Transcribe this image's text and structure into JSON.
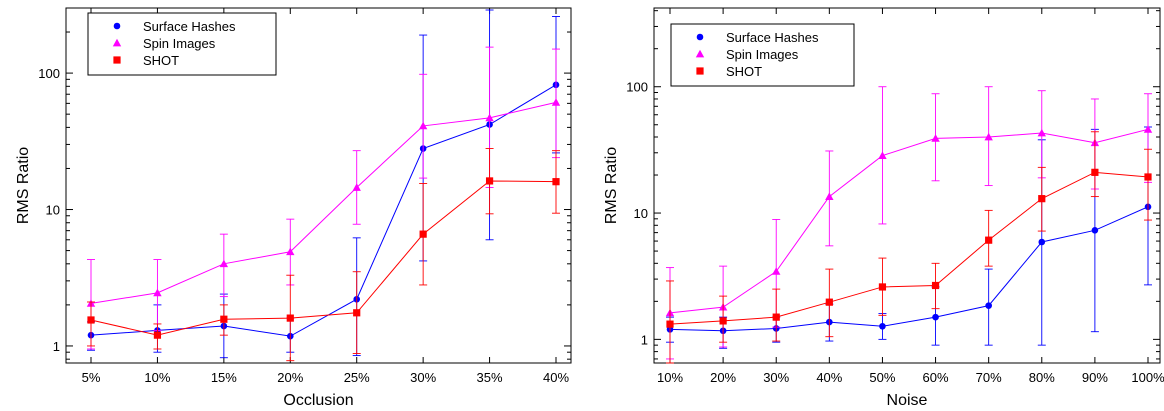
{
  "chart_data": [
    {
      "type": "line",
      "xlabel": "Occlusion",
      "ylabel": "RMS Ratio",
      "yscale": "log",
      "ylim": [
        0.75,
        300
      ],
      "yticks": [
        1,
        10,
        100
      ],
      "ytick_labels": [
        "1",
        "10",
        "100"
      ],
      "categories": [
        "5%",
        "10%",
        "15%",
        "20%",
        "25%",
        "30%",
        "35%",
        "40%"
      ],
      "legend_position": "top-left",
      "series": [
        {
          "name": "Surface Hashes",
          "color": "#0000ff",
          "marker": "circle",
          "values": [
            1.2,
            1.3,
            1.4,
            1.18,
            2.2,
            28,
            42,
            82
          ],
          "err_low": [
            0.93,
            0.9,
            0.82,
            0.9,
            0.85,
            4.2,
            6,
            26
          ],
          "err_high": [
            1.5,
            2.0,
            2.4,
            1.6,
            6.2,
            190,
            290,
            260
          ]
        },
        {
          "name": "Spin Images",
          "color": "#ff00ff",
          "marker": "triangle",
          "values": [
            2.05,
            2.45,
            4.0,
            4.9,
            14.5,
            41,
            47,
            61
          ],
          "err_low": [
            0.95,
            1.3,
            2.3,
            2.8,
            7.8,
            17,
            14.5,
            24
          ],
          "err_high": [
            4.3,
            4.3,
            6.6,
            8.5,
            27,
            98,
            155,
            150
          ]
        },
        {
          "name": "SHOT",
          "color": "#ff0000",
          "marker": "square",
          "values": [
            1.55,
            1.2,
            1.57,
            1.6,
            1.75,
            6.6,
            16.2,
            16
          ],
          "err_low": [
            1.0,
            0.95,
            1.2,
            0.78,
            0.88,
            2.8,
            9.3,
            9.4
          ],
          "err_high": [
            2.1,
            1.45,
            2.0,
            3.3,
            3.5,
            15.5,
            28,
            27
          ]
        }
      ]
    },
    {
      "type": "line",
      "xlabel": "Noise",
      "ylabel": "RMS Ratio",
      "yscale": "log",
      "ylim": [
        0.65,
        420
      ],
      "yticks": [
        1,
        10,
        100
      ],
      "ytick_labels": [
        "1",
        "10",
        "100"
      ],
      "categories": [
        "10%",
        "20%",
        "30%",
        "40%",
        "50%",
        "60%",
        "70%",
        "80%",
        "90%",
        "100%"
      ],
      "legend_position": "top-left",
      "series": [
        {
          "name": "Surface Hashes",
          "color": "#0000ff",
          "marker": "circle",
          "values": [
            1.2,
            1.17,
            1.22,
            1.37,
            1.27,
            1.5,
            1.85,
            5.9,
            7.3,
            11.2
          ],
          "err_low": [
            0.95,
            0.85,
            0.95,
            0.97,
            1.0,
            0.9,
            0.9,
            0.9,
            1.15,
            2.7
          ],
          "err_high": [
            1.5,
            1.5,
            1.5,
            1.9,
            1.6,
            2.6,
            3.6,
            38,
            46,
            48
          ]
        },
        {
          "name": "Spin Images",
          "color": "#ff00ff",
          "marker": "triangle",
          "values": [
            1.62,
            1.8,
            3.45,
            13.5,
            28.5,
            39,
            40,
            43,
            36,
            46
          ],
          "err_low": [
            0.7,
            0.87,
            1.25,
            5.5,
            8.2,
            18,
            16.5,
            19,
            15.5,
            17.5
          ],
          "err_high": [
            3.7,
            3.8,
            8.9,
            31,
            100,
            88,
            100,
            93,
            80,
            88
          ]
        },
        {
          "name": "SHOT",
          "color": "#ff0000",
          "marker": "square",
          "values": [
            1.32,
            1.4,
            1.5,
            1.97,
            2.6,
            2.67,
            6.1,
            13,
            21,
            19.3
          ],
          "err_low": [
            0.65,
            0.95,
            0.97,
            1.05,
            1.55,
            1.75,
            3.8,
            7.2,
            13.5,
            8.8
          ],
          "err_high": [
            2.9,
            2.2,
            2.5,
            3.6,
            4.4,
            4.0,
            10.5,
            23,
            44,
            32
          ]
        }
      ]
    }
  ]
}
